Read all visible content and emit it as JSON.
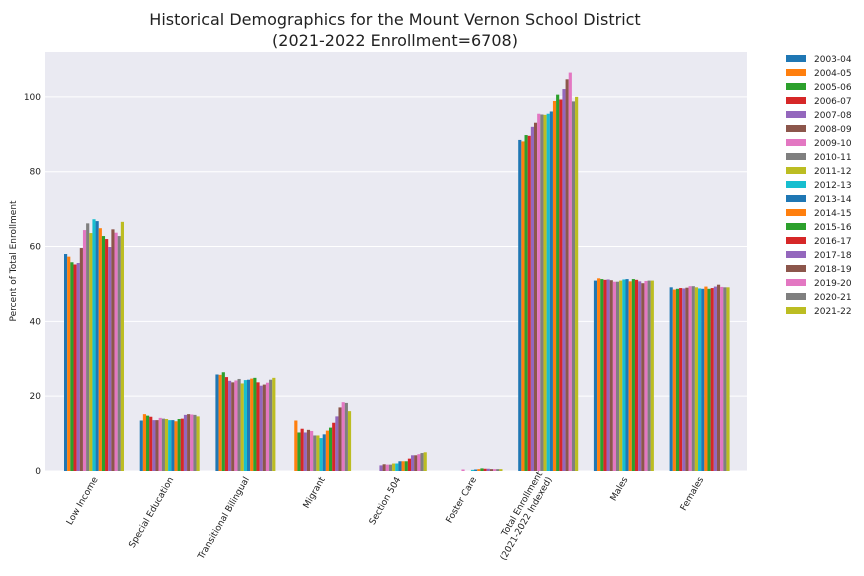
{
  "chart_data": {
    "type": "bar",
    "title_line1": "Historical Demographics for the Mount Vernon School District",
    "title_line2": "(2021-2022 Enrollment=6708)",
    "xlabel": "",
    "ylabel": "Percent of Total Enrollment",
    "ylim": [
      0,
      112
    ],
    "yticks": [
      0,
      20,
      40,
      60,
      80,
      100
    ],
    "grid": true,
    "legend_position": "outside-right",
    "categories": [
      "Low Income",
      "Special Education",
      "Transitional Bilingual",
      "Migrant",
      "Section 504",
      "Foster Care",
      "Total Enrollment\n(2021-2022 Indexed)",
      "Males",
      "Females"
    ],
    "series": [
      {
        "name": "2003-04",
        "color": "#1f77b4",
        "values": [
          58.0,
          13.5,
          25.8,
          null,
          null,
          null,
          88.5,
          50.9,
          49.1
        ]
      },
      {
        "name": "2004-05",
        "color": "#ff7f0e",
        "values": [
          57.3,
          15.2,
          25.7,
          13.5,
          null,
          null,
          88.1,
          51.5,
          48.5
        ]
      },
      {
        "name": "2005-06",
        "color": "#2ca02c",
        "values": [
          55.8,
          14.8,
          26.4,
          10.3,
          null,
          null,
          89.8,
          51.3,
          48.7
        ]
      },
      {
        "name": "2006-07",
        "color": "#d62728",
        "values": [
          55.2,
          14.5,
          25.1,
          11.3,
          null,
          null,
          89.6,
          51.1,
          48.9
        ]
      },
      {
        "name": "2007-08",
        "color": "#9467bd",
        "values": [
          55.6,
          13.6,
          24.1,
          10.3,
          1.5,
          null,
          92.0,
          51.2,
          48.8
        ]
      },
      {
        "name": "2008-09",
        "color": "#8c564b",
        "values": [
          59.6,
          13.6,
          23.7,
          11.0,
          1.8,
          null,
          93.1,
          51.0,
          49.0
        ]
      },
      {
        "name": "2009-10",
        "color": "#e377c2",
        "values": [
          64.4,
          14.2,
          24.2,
          10.7,
          1.7,
          0.4,
          95.5,
          50.6,
          49.4
        ]
      },
      {
        "name": "2010-11",
        "color": "#7f7f7f",
        "values": [
          66.2,
          14.0,
          24.6,
          9.5,
          1.7,
          null,
          95.3,
          50.6,
          49.4
        ]
      },
      {
        "name": "2011-12",
        "color": "#bcbd22",
        "values": [
          63.6,
          13.9,
          23.4,
          9.5,
          2.0,
          null,
          95.2,
          50.9,
          49.1
        ]
      },
      {
        "name": "2012-13",
        "color": "#17becf",
        "values": [
          67.3,
          13.6,
          24.3,
          8.8,
          2.0,
          0.3,
          95.5,
          51.2,
          48.8
        ]
      },
      {
        "name": "2013-14",
        "color": "#1f77b4",
        "values": [
          66.8,
          13.6,
          24.4,
          9.8,
          2.6,
          0.4,
          96.1,
          51.3,
          48.7
        ]
      },
      {
        "name": "2014-15",
        "color": "#ff7f0e",
        "values": [
          64.9,
          13.3,
          24.7,
          10.8,
          2.6,
          0.5,
          98.9,
          50.7,
          49.3
        ]
      },
      {
        "name": "2015-16",
        "color": "#2ca02c",
        "values": [
          62.8,
          13.9,
          24.9,
          11.6,
          2.6,
          0.7,
          100.6,
          51.3,
          48.7
        ]
      },
      {
        "name": "2016-17",
        "color": "#d62728",
        "values": [
          62.0,
          14.0,
          23.7,
          12.9,
          3.3,
          0.6,
          99.3,
          51.1,
          48.9
        ]
      },
      {
        "name": "2017-18",
        "color": "#9467bd",
        "values": [
          59.9,
          15.0,
          22.8,
          14.6,
          4.2,
          0.6,
          102.1,
          50.7,
          49.3
        ]
      },
      {
        "name": "2018-19",
        "color": "#8c564b",
        "values": [
          64.6,
          15.2,
          23.1,
          17.0,
          4.2,
          0.5,
          104.7,
          50.2,
          49.8
        ]
      },
      {
        "name": "2019-20",
        "color": "#e377c2",
        "values": [
          63.7,
          15.1,
          23.6,
          18.4,
          4.5,
          0.5,
          106.5,
          50.8,
          49.2
        ]
      },
      {
        "name": "2020-21",
        "color": "#7f7f7f",
        "values": [
          62.8,
          15.0,
          24.4,
          18.2,
          4.8,
          0.5,
          98.8,
          50.9,
          49.1
        ]
      },
      {
        "name": "2021-22",
        "color": "#bcbd22",
        "values": [
          66.6,
          14.6,
          24.9,
          16.0,
          5.0,
          0.5,
          100.0,
          50.9,
          49.1
        ]
      }
    ]
  }
}
